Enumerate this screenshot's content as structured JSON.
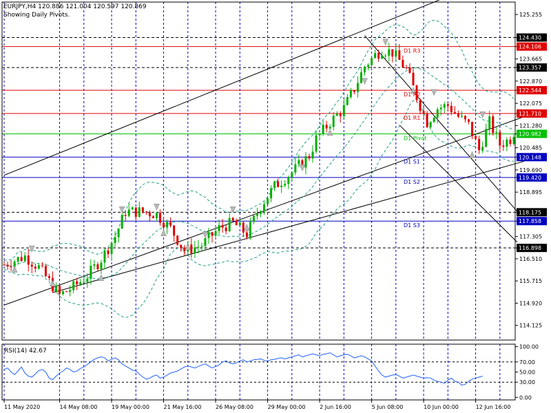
{
  "header": {
    "symbol_line": "EURJPY,H4  120.886 121.004 120.597 120.869",
    "subtitle": "Showing Daily Pivots."
  },
  "colors": {
    "bull": "#00b000",
    "bear": "#e00000",
    "resistance": "#e00000",
    "support": "#0000c0",
    "pivot": "#00c000",
    "bollinger": "#20a080",
    "grid": "#0000c0",
    "rsi": "#2060ff"
  },
  "chart_data": [
    {
      "type": "candlestick",
      "ylim": [
        113.6,
        125.7
      ],
      "x_count": 148,
      "y_ticks": [
        "125.255",
        "124.430",
        "124.106",
        "123.665",
        "123.357",
        "122.870",
        "122.544",
        "122.075",
        "121.710",
        "121.280",
        "120.982",
        "120.485",
        "120.148",
        "119.690",
        "119.420",
        "118.895",
        "118.175",
        "117.858",
        "117.305",
        "116.898",
        "116.510",
        "115.715",
        "114.920",
        "114.125"
      ],
      "x_ticks": [
        {
          "i": 0,
          "label": "11 May 2020"
        },
        {
          "i": 16,
          "label": "14 May 08:00"
        },
        {
          "i": 31,
          "label": "19 May 00:00"
        },
        {
          "i": 46,
          "label": "21 May 16:00"
        },
        {
          "i": 61,
          "label": "26 May 08:00"
        },
        {
          "i": 76,
          "label": "29 May 00:00"
        },
        {
          "i": 91,
          "label": "2 Jun 16:00"
        },
        {
          "i": 106,
          "label": "5 Jun 08:00"
        },
        {
          "i": 121,
          "label": "10 Jun 00:00"
        },
        {
          "i": 136,
          "label": "12 Jun 16:00"
        }
      ],
      "vertical_grid_i": [
        23,
        38,
        53,
        68,
        83,
        98,
        113,
        128,
        143
      ],
      "pivots": [
        {
          "name": "R3",
          "label": "D1 R3",
          "value": 124.106,
          "tag": "124.106",
          "style": "resistance"
        },
        {
          "name": "R2",
          "label": "D1 R2",
          "value": 122.544,
          "tag": "122.544",
          "style": "resistance"
        },
        {
          "name": "R1",
          "label": "D1 R1",
          "value": 121.71,
          "tag": "121.710",
          "style": "resistance"
        },
        {
          "name": "Pivot",
          "label": "D1 Pivot",
          "value": 120.982,
          "tag": "120.982",
          "style": "pivot"
        },
        {
          "name": "S1",
          "label": "D1 S1",
          "value": 120.148,
          "tag": "120.148",
          "style": "support"
        },
        {
          "name": "S2",
          "label": "D1 S2",
          "value": 119.42,
          "tag": "119.420",
          "style": "support"
        },
        {
          "name": "S3",
          "label": "D1 S3",
          "value": 117.858,
          "tag": "117.858",
          "style": "support"
        }
      ],
      "dashed_levels": [
        {
          "value": 124.43,
          "tag": "124.430"
        },
        {
          "value": 123.357,
          "tag": "123.357"
        },
        {
          "value": 118.175,
          "tag": "118.175"
        },
        {
          "value": 116.898,
          "tag": "116.898"
        }
      ],
      "trendlines": [
        {
          "i1": 0,
          "v1": 119.5,
          "i2": 140,
          "v2": 126.5
        },
        {
          "i1": 0,
          "v1": 114.85,
          "i2": 150,
          "v2": 121.6
        },
        {
          "i1": 14,
          "v1": 115.3,
          "i2": 150,
          "v2": 120.0
        },
        {
          "i1": 104,
          "v1": 124.5,
          "i2": 148,
          "v2": 118.2
        },
        {
          "i1": 114,
          "v1": 121.3,
          "i2": 148,
          "v2": 117.1
        }
      ],
      "path": [
        [
          0,
          116.3
        ],
        [
          6,
          116.6
        ],
        [
          10,
          116.2
        ],
        [
          16,
          115.2
        ],
        [
          20,
          115.5
        ],
        [
          24,
          115.9
        ],
        [
          28,
          116.5
        ],
        [
          32,
          117.3
        ],
        [
          35,
          118.2
        ],
        [
          40,
          118.2
        ],
        [
          44,
          118.1
        ],
        [
          48,
          117.6
        ],
        [
          52,
          116.8
        ],
        [
          57,
          117.0
        ],
        [
          62,
          117.6
        ],
        [
          66,
          117.8
        ],
        [
          70,
          117.4
        ],
        [
          74,
          118.4
        ],
        [
          78,
          119.1
        ],
        [
          83,
          119.6
        ],
        [
          88,
          120.2
        ],
        [
          90,
          120.8
        ],
        [
          94,
          121.4
        ],
        [
          98,
          121.9
        ],
        [
          101,
          122.6
        ],
        [
          104,
          123.4
        ],
        [
          107,
          123.8
        ],
        [
          109,
          124.0
        ],
        [
          112,
          123.9
        ],
        [
          116,
          123.3
        ],
        [
          119,
          122.3
        ],
        [
          122,
          121.4
        ],
        [
          125,
          121.9
        ],
        [
          128,
          122.0
        ],
        [
          131,
          121.6
        ],
        [
          134,
          121.3
        ],
        [
          137,
          120.4
        ],
        [
          140,
          121.4
        ],
        [
          143,
          120.6
        ],
        [
          147,
          120.87
        ]
      ],
      "bollinger_width": 1.0,
      "markers_up": [
        [
          3,
          116.1
        ],
        [
          14,
          115.6
        ],
        [
          28,
          115.8
        ],
        [
          46,
          117.4
        ],
        [
          53,
          116.9
        ],
        [
          70,
          117.6
        ],
        [
          94,
          121.0
        ],
        [
          118,
          122.5
        ],
        [
          135,
          120.2
        ]
      ],
      "markers_down": [
        [
          8,
          116.9
        ],
        [
          34,
          118.3
        ],
        [
          44,
          118.4
        ],
        [
          58,
          117.4
        ],
        [
          66,
          118.3
        ],
        [
          86,
          119.8
        ],
        [
          104,
          122.9
        ],
        [
          110,
          124.3
        ],
        [
          124,
          122.5
        ],
        [
          138,
          121.7
        ]
      ]
    },
    {
      "type": "line",
      "title": "RSI(14) 42.67",
      "name": "RSI(14)",
      "ylim": [
        -5,
        105
      ],
      "y_ticks": [
        100,
        70,
        50,
        30,
        0
      ],
      "y_tick_labels": [
        "100.00",
        "70.00",
        "50.00",
        "30.00",
        "0.00"
      ],
      "levels": [
        70,
        30
      ],
      "values": [
        55,
        58,
        50,
        45,
        52,
        60,
        48,
        42,
        40,
        46,
        53,
        55,
        50,
        38,
        35,
        42,
        48,
        52,
        58,
        55,
        50,
        52,
        57,
        60,
        65,
        70,
        75,
        78,
        80,
        78,
        72,
        75,
        78,
        74,
        66,
        62,
        58,
        54,
        52,
        46,
        40,
        36,
        38,
        42,
        44,
        38,
        40,
        44,
        48,
        50,
        52,
        56,
        60,
        62,
        60,
        58,
        61,
        64,
        66,
        62,
        58,
        61,
        64,
        70,
        72,
        68,
        66,
        68,
        72,
        74,
        70,
        72,
        74,
        75,
        76,
        73,
        72,
        74,
        75,
        77,
        78,
        76,
        78,
        80,
        82,
        84,
        80,
        82,
        84,
        86,
        84,
        82,
        85,
        86,
        88,
        84,
        80,
        82,
        84,
        85,
        82,
        78,
        80,
        82,
        80,
        76,
        72,
        62,
        52,
        44,
        40,
        42,
        44,
        45,
        42,
        38,
        40,
        42,
        44,
        42,
        40,
        38,
        39,
        38,
        34,
        32,
        30,
        28,
        34,
        38,
        32,
        30,
        24,
        26,
        32,
        36,
        38,
        40,
        42
      ]
    }
  ]
}
